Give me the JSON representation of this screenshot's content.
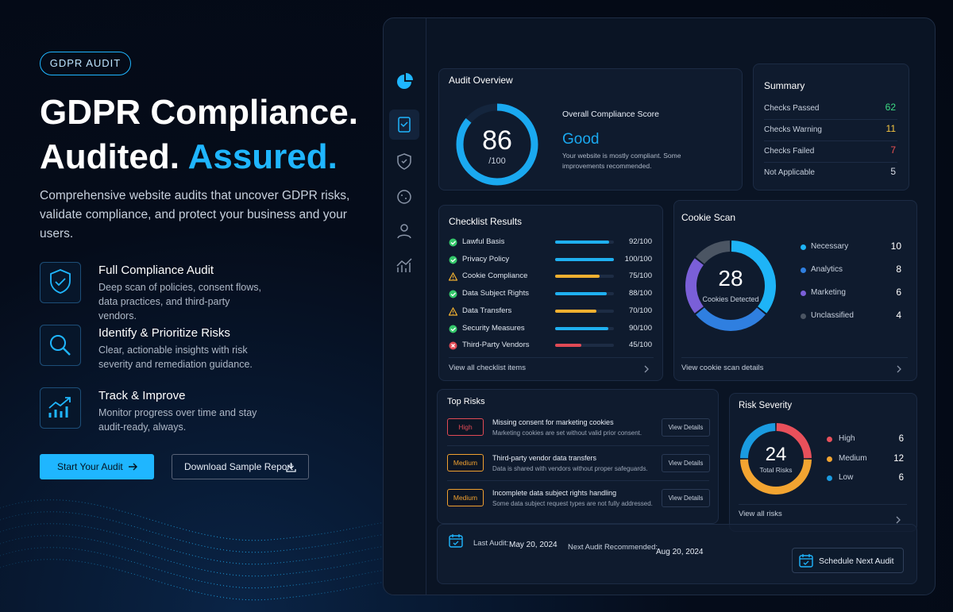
{
  "hero": {
    "badge": "GDPR AUDIT",
    "title": [
      "GDPR Compliance.",
      "Audited.",
      "Assured."
    ],
    "description": "Comprehensive website audits that uncover GDPR risks, validate compliance, and protect your business and your users.",
    "features": [
      {
        "title": "Full Compliance Audit",
        "text": "Deep scan of policies, consent flows, data practices, and third-party vendors."
      },
      {
        "title": "Identify & Prioritize Risks",
        "text": "Clear, actionable insights with risk severity and remediation guidance."
      },
      {
        "title": "Track & Improve",
        "text": "Monitor progress over time and stay audit-ready, always."
      }
    ],
    "buttons": [
      "Start Your Audit",
      "Download Sample Report"
    ]
  },
  "audit_overview": {
    "title": "Audit Overview",
    "score": 86,
    "score_max": {
      "value": 100,
      "label": "/100"
    },
    "score_label": "Overall Compliance Score",
    "rating": "Good",
    "note": "Your website is mostly compliant. Some improvements recommended.",
    "color": "#1aa9f0"
  },
  "summary": {
    "title": "Summary",
    "rows": [
      {
        "label": "Checks Passed",
        "value": 62,
        "color": "#3ddc84"
      },
      {
        "label": "Checks Warning",
        "value": 11,
        "color": "#f5c542"
      },
      {
        "label": "Checks Failed",
        "value": 7,
        "color": "#f05252"
      },
      {
        "label": "Not Applicable",
        "value": 5,
        "color": "#d8dde6"
      }
    ]
  },
  "checklist": {
    "title": "Checklist Results",
    "scale": [
      0,
      100
    ],
    "status_colors": {
      "pass": {
        "icon": "#34c76a",
        "bar": "#1fb0f0"
      },
      "warning": {
        "icon": "#f0b030",
        "bar": "#f0b030"
      },
      "fail": {
        "icon": "#e04a55",
        "bar": "#e04a55"
      }
    },
    "items": [
      {
        "name": "Lawful Basis",
        "status": "pass",
        "value": 92,
        "label": "92/100"
      },
      {
        "name": "Privacy Policy",
        "status": "pass",
        "value": 100,
        "label": "100/100"
      },
      {
        "name": "Cookie Compliance",
        "status": "warning",
        "value": 75,
        "label": "75/100"
      },
      {
        "name": "Data Subject Rights",
        "status": "pass",
        "value": 88,
        "label": "88/100"
      },
      {
        "name": "Data Transfers",
        "status": "warning",
        "value": 70,
        "label": "70/100"
      },
      {
        "name": "Security Measures",
        "status": "pass",
        "value": 90,
        "label": "90/100"
      },
      {
        "name": "Third-Party Vendors",
        "status": "fail",
        "value": 45,
        "label": "45/100"
      }
    ],
    "link": "View all checklist items"
  },
  "cookie_scan": {
    "title": "Cookie Scan",
    "total": 28,
    "total_label": "Cookies Detected",
    "categories": [
      {
        "name": "Necessary",
        "value": 10,
        "color": "#1eb4f7"
      },
      {
        "name": "Analytics",
        "value": 8,
        "color": "#2f7fe0"
      },
      {
        "name": "Marketing",
        "value": 6,
        "color": "#7a5fd8"
      },
      {
        "name": "Unclassified",
        "value": 4,
        "color": "#4b5563"
      }
    ],
    "link": "View cookie scan details"
  },
  "top_risks": {
    "title": "Top Risks",
    "button": "View Details",
    "items": [
      {
        "severity": "High",
        "title": "Missing consent for marketing cookies",
        "text": "Marketing cookies are set without valid prior consent.",
        "color": "#e04a55"
      },
      {
        "severity": "Medium",
        "title": "Third-party vendor data transfers",
        "text": "Data is shared with vendors without proper safeguards.",
        "color": "#f0a030"
      },
      {
        "severity": "Medium",
        "title": "Incomplete data subject rights handling",
        "text": "Some data subject request types are not fully addressed.",
        "color": "#f0a030"
      }
    ]
  },
  "risk_severity": {
    "title": "Risk Severity",
    "total": 24,
    "total_label": "Total Risks",
    "levels": [
      {
        "name": "High",
        "value": 6,
        "color": "#e8505b"
      },
      {
        "name": "Medium",
        "value": 12,
        "color": "#f2a431"
      },
      {
        "name": "Low",
        "value": 6,
        "color": "#1a9be0"
      }
    ],
    "link": "View all risks"
  },
  "footer": {
    "last_audit_label": "Last Audit:",
    "last_audit": "May 20, 2024",
    "next_audit_label": "Next Audit Recommended:",
    "next_audit": "Aug 20, 2024",
    "button": "Schedule Next Audit"
  }
}
